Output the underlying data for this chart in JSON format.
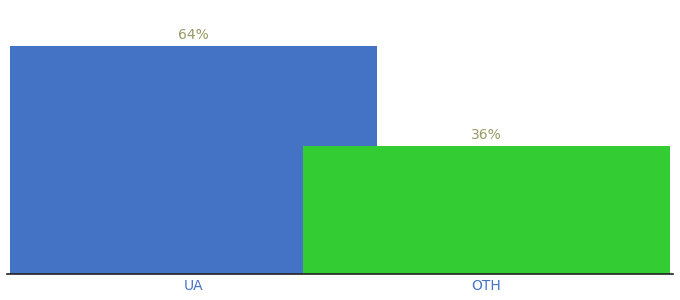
{
  "categories": [
    "UA",
    "OTH"
  ],
  "values": [
    64,
    36
  ],
  "bar_colors": [
    "#4472c4",
    "#33cc33"
  ],
  "label_color": "#999966",
  "axis_label_color": "#4472c4",
  "background_color": "#ffffff",
  "ylim": [
    0,
    75
  ],
  "bar_width": 0.55,
  "value_labels": [
    "64%",
    "36%"
  ],
  "label_fontsize": 10,
  "tick_fontsize": 10,
  "bar_positions": [
    0.28,
    0.72
  ]
}
